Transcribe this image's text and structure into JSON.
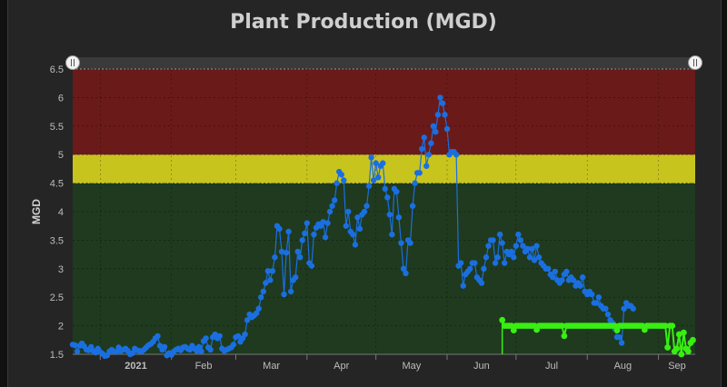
{
  "chart_data": {
    "type": "line",
    "title": "Plant Production (MGD)",
    "ylabel": "MGD",
    "ylim": [
      1.5,
      6.5
    ],
    "yticks": [
      "1.5",
      "2",
      "2.5",
      "3",
      "3.5",
      "4",
      "4.5",
      "5",
      "5.5",
      "6",
      "6.5"
    ],
    "xlim": [
      "2020-12-20",
      "2021-09-17"
    ],
    "xticks": [
      {
        "date": "2021-01-01",
        "label": "2021",
        "bold": true
      },
      {
        "date": "2021-02-01",
        "label": "Feb"
      },
      {
        "date": "2021-03-01",
        "label": "Mar"
      },
      {
        "date": "2021-04-01",
        "label": "Apr"
      },
      {
        "date": "2021-05-01",
        "label": "May"
      },
      {
        "date": "2021-06-01",
        "label": "Jun"
      },
      {
        "date": "2021-07-01",
        "label": "Jul"
      },
      {
        "date": "2021-08-01",
        "label": "Aug"
      },
      {
        "date": "2021-09-01",
        "label": "Sep"
      }
    ],
    "bands": [
      {
        "from": 1.5,
        "to": 4.5,
        "color": "#1f3a1f"
      },
      {
        "from": 4.5,
        "to": 5.0,
        "color": "#c8c41e"
      },
      {
        "from": 5.0,
        "to": 6.5,
        "color": "#6b1a1a"
      }
    ],
    "grid": true,
    "series": [
      {
        "color": "#1a6fe0",
        "x_start": "2020-12-20",
        "step_days": 1,
        "values": [
          1.67,
          1.66,
          1.55,
          1.65,
          1.69,
          1.64,
          1.58,
          1.57,
          1.63,
          1.56,
          1.53,
          1.6,
          1.54,
          1.51,
          1.47,
          1.48,
          1.55,
          1.58,
          1.55,
          1.54,
          1.62,
          1.56,
          1.58,
          1.6,
          1.56,
          1.5,
          1.52,
          1.6,
          1.57,
          1.56,
          1.55,
          1.58,
          1.62,
          1.66,
          1.68,
          1.72,
          1.78,
          1.82,
          1.65,
          1.58,
          1.63,
          1.48,
          1.52,
          1.49,
          1.55,
          1.58,
          1.6,
          1.57,
          1.62,
          1.63,
          1.6,
          1.58,
          1.65,
          1.6,
          1.56,
          1.63,
          1.55,
          1.73,
          1.78,
          1.62,
          1.58,
          1.8,
          1.85,
          1.78,
          1.82,
          1.6,
          1.56,
          1.58,
          1.6,
          1.62,
          1.67,
          1.8,
          1.82,
          1.72,
          1.78,
          1.85,
          2.1,
          2.2,
          2.15,
          2.18,
          2.22,
          2.3,
          2.5,
          2.6,
          2.75,
          2.96,
          2.8,
          2.96,
          3.2,
          3.75,
          3.7,
          3.3,
          2.55,
          3.28,
          3.65,
          2.6,
          2.8,
          2.85,
          3.3,
          3.2,
          3.5,
          3.62,
          3.8,
          3.1,
          3.05,
          3.6,
          3.72,
          3.78,
          3.75,
          3.82,
          3.55,
          3.8,
          4.0,
          4.1,
          4.2,
          4.5,
          4.7,
          4.65,
          4.55,
          3.75,
          4.0,
          3.65,
          3.6,
          3.42,
          3.9,
          3.7,
          3.95,
          4.0,
          4.1,
          4.45,
          4.95,
          4.55,
          4.85,
          4.6,
          4.8,
          4.85,
          4.4,
          4.25,
          3.95,
          3.6,
          4.4,
          4.35,
          3.9,
          3.45,
          3.0,
          2.92,
          3.5,
          3.45,
          4.1,
          4.5,
          4.68,
          4.68,
          5.1,
          5.3,
          4.8,
          5.0,
          5.2,
          5.5,
          5.4,
          5.7,
          6.0,
          5.9,
          5.7,
          5.45,
          5.0,
          5.05,
          5.05,
          5.0,
          3.05,
          3.1,
          2.7,
          2.9,
          2.95,
          3.0,
          3.1,
          3.1,
          2.85,
          2.8,
          2.75,
          3.0,
          3.2,
          3.4,
          3.5,
          3.5,
          3.1,
          3.2,
          3.6,
          3.45,
          3.1,
          3.3,
          3.25,
          3.3,
          3.2,
          3.4,
          3.6,
          3.5,
          3.4,
          3.3,
          3.35,
          3.2,
          3.35,
          3.15,
          3.4,
          3.2,
          3.1,
          3.05,
          3.0,
          3.0,
          2.9,
          2.85,
          2.95,
          2.8,
          2.75,
          2.8,
          2.9,
          2.95,
          2.8,
          2.85,
          2.8,
          2.7,
          2.75,
          2.7,
          2.85,
          2.6,
          2.55,
          2.6,
          2.55,
          2.4,
          2.4,
          2.5,
          2.35,
          2.3,
          2.3,
          2.2,
          2.1,
          2.05,
          1.95,
          1.8,
          1.8,
          1.7,
          2.3,
          2.4,
          2.35,
          2.35,
          2.3
        ]
      },
      {
        "color": "#39ee12",
        "x_start": "2021-06-25",
        "x_end": "2021-09-16",
        "base": 2.0,
        "first": 2.1,
        "dips": [
          {
            "date": "2021-06-30",
            "value": 1.92
          },
          {
            "date": "2021-07-10",
            "value": 1.93
          },
          {
            "date": "2021-07-22",
            "value": 1.82
          },
          {
            "date": "2021-08-14",
            "value": 1.92
          },
          {
            "date": "2021-08-26",
            "value": 1.93
          },
          {
            "date": "2021-09-05",
            "value": 1.62
          },
          {
            "date": "2021-09-08",
            "value": 1.55
          },
          {
            "date": "2021-09-09",
            "value": 1.6
          },
          {
            "date": "2021-09-10",
            "value": 1.85
          },
          {
            "date": "2021-09-11",
            "value": 1.5
          },
          {
            "date": "2021-09-12",
            "value": 1.88
          },
          {
            "date": "2021-09-13",
            "value": 1.6
          },
          {
            "date": "2021-09-14",
            "value": 1.55
          },
          {
            "date": "2021-09-15",
            "value": 1.7
          },
          {
            "date": "2021-09-16",
            "value": 1.75
          }
        ]
      }
    ]
  }
}
